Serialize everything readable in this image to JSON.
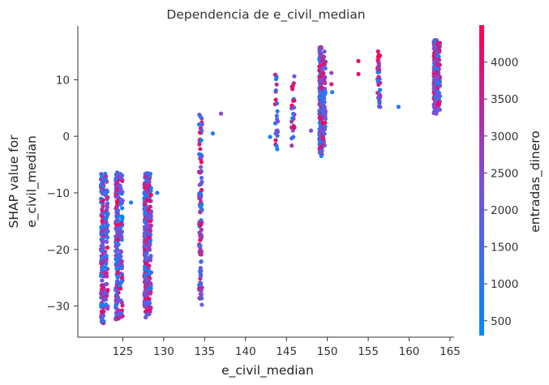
{
  "chart_data": {
    "type": "scatter",
    "title": "Dependencia de e_civil_median",
    "xlabel": "e_civil_median",
    "ylabel_lines": [
      "SHAP value for",
      "e_civil_median"
    ],
    "xlim": [
      119.5,
      165.5
    ],
    "ylim": [
      -35.5,
      19.5
    ],
    "xticks": [
      125,
      130,
      135,
      140,
      145,
      150,
      155,
      160,
      165
    ],
    "yticks": [
      -30,
      -20,
      -10,
      0,
      10
    ],
    "grid": false,
    "colorbar": {
      "label": "entradas_dinero",
      "range": [
        300,
        4500
      ],
      "ticks": [
        500,
        1000,
        1500,
        2000,
        2500,
        3000,
        3500,
        4000
      ],
      "colors": [
        "#008afb",
        "#7c4fdc",
        "#ff0052"
      ]
    },
    "clusters": [
      {
        "x": 122.5,
        "y_min": -33,
        "y_max": -6.5,
        "density": 160
      },
      {
        "x": 123.0,
        "y_min": -31,
        "y_max": -6.5,
        "density": 60
      },
      {
        "x": 124.3,
        "y_min": -32.5,
        "y_max": -6.3,
        "density": 180
      },
      {
        "x": 124.8,
        "y_min": -32,
        "y_max": -6.5,
        "density": 80
      },
      {
        "x": 127.8,
        "y_min": -32,
        "y_max": -6.2,
        "density": 220
      },
      {
        "x": 128.3,
        "y_min": -31.5,
        "y_max": -6.5,
        "density": 100
      },
      {
        "x": 134.5,
        "y_min": -30,
        "y_max": 4.5,
        "density": 120
      },
      {
        "x": 143.8,
        "y_min": -3,
        "y_max": 11,
        "density": 25
      },
      {
        "x": 145.8,
        "y_min": -2,
        "y_max": 11,
        "density": 25
      },
      {
        "x": 149.2,
        "y_min": -3.5,
        "y_max": 16,
        "density": 180
      },
      {
        "x": 149.6,
        "y_min": -2,
        "y_max": 15,
        "density": 60
      },
      {
        "x": 156.3,
        "y_min": 5,
        "y_max": 15,
        "density": 35
      },
      {
        "x": 163.2,
        "y_min": 4,
        "y_max": 17,
        "density": 220
      },
      {
        "x": 163.6,
        "y_min": 4.5,
        "y_max": 16.5,
        "density": 80
      }
    ],
    "points": [
      {
        "x": 126.0,
        "y": -11.7,
        "c": 800
      },
      {
        "x": 129.2,
        "y": -10.0,
        "c": 900
      },
      {
        "x": 136.0,
        "y": 0.5,
        "c": 900
      },
      {
        "x": 137.0,
        "y": 4.0,
        "c": 2600
      },
      {
        "x": 143.0,
        "y": -0.1,
        "c": 800
      },
      {
        "x": 148.0,
        "y": 1.0,
        "c": 2400
      },
      {
        "x": 150.6,
        "y": 7.8,
        "c": 800
      },
      {
        "x": 150.5,
        "y": 9.2,
        "c": 3800
      },
      {
        "x": 150.5,
        "y": 11.2,
        "c": 2500
      },
      {
        "x": 153.8,
        "y": 13.3,
        "c": 4200
      },
      {
        "x": 153.8,
        "y": 11.0,
        "c": 4000
      },
      {
        "x": 158.7,
        "y": 5.2,
        "c": 900
      },
      {
        "x": 156.2,
        "y": 15.0,
        "c": 4300
      },
      {
        "x": 156.2,
        "y": 13.5,
        "c": 4000
      }
    ]
  }
}
